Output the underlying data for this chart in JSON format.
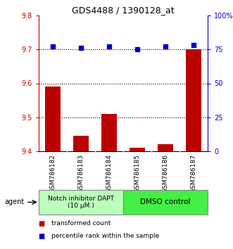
{
  "title": "GDS4488 / 1390128_at",
  "samples": [
    "GSM786182",
    "GSM786183",
    "GSM786184",
    "GSM786185",
    "GSM786186",
    "GSM786187"
  ],
  "bar_values": [
    9.59,
    9.445,
    9.51,
    9.41,
    9.42,
    9.7
  ],
  "scatter_values": [
    77,
    76,
    77,
    75,
    77,
    78
  ],
  "ylim_left": [
    9.4,
    9.8
  ],
  "ylim_right": [
    0,
    100
  ],
  "yticks_left": [
    9.4,
    9.5,
    9.6,
    9.7,
    9.8
  ],
  "yticks_right": [
    0,
    25,
    50,
    75,
    100
  ],
  "ytick_labels_right": [
    "0",
    "25",
    "50",
    "75",
    "100%"
  ],
  "hlines": [
    9.5,
    9.6,
    9.7
  ],
  "bar_color": "#bb0000",
  "scatter_color": "#0000cc",
  "group1_label": "Notch inhibitor DAPT\n(10 μM.)",
  "group2_label": "DMSO control",
  "group1_color": "#bbffbb",
  "group2_color": "#44ee44",
  "group1_indices": [
    0,
    1,
    2
  ],
  "group2_indices": [
    3,
    4,
    5
  ],
  "agent_label": "agent",
  "legend_red": "transformed count",
  "legend_blue": "percentile rank within the sample",
  "left_axis_color": "#cc0000",
  "right_axis_color": "#0000cc",
  "tick_label_gray_bg": "#cccccc"
}
